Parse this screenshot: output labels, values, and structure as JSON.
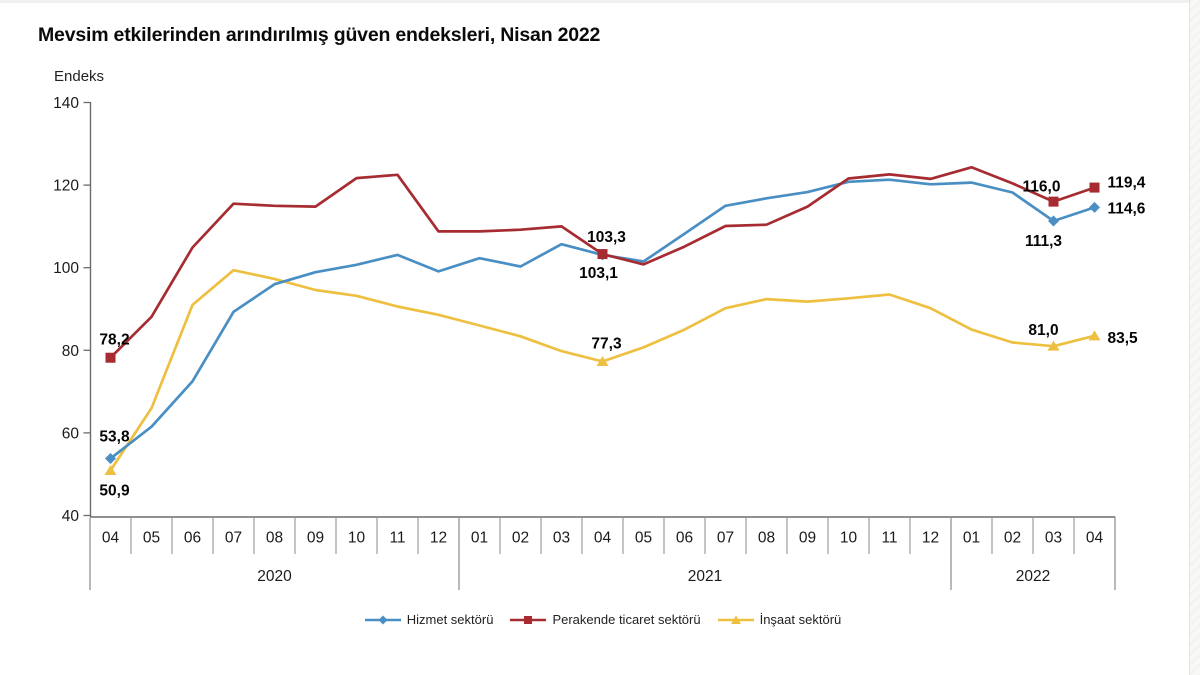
{
  "page": {
    "title": "Mevsim etkilerinden arındırılmış güven endeksleri, Nisan 2022"
  },
  "colors": {
    "hizmet": "#4a8fc4",
    "perakende": "#a62c32",
    "insaat": "#eec041",
    "axis_line": "#6b6b6b",
    "separator": "#8a8a8a",
    "tick_text": "#1b1b1b",
    "data_label_text": "#050505"
  },
  "chart_data": {
    "type": "line",
    "title": "Mevsim etkilerinden arındırılmış güven endeksleri, Nisan 2022",
    "ylabel": "Endeks",
    "ylim": [
      40,
      140
    ],
    "yticks": [
      140,
      120,
      100,
      80,
      60,
      40
    ],
    "grid": false,
    "legend_position": "bottom",
    "x_labels": [
      "04",
      "05",
      "06",
      "07",
      "08",
      "09",
      "10",
      "11",
      "12",
      "01",
      "02",
      "03",
      "04",
      "05",
      "06",
      "07",
      "08",
      "09",
      "10",
      "11",
      "12",
      "01",
      "02",
      "03",
      "04"
    ],
    "year_groups": [
      {
        "label": "2020",
        "count": 9
      },
      {
        "label": "2021",
        "count": 12
      },
      {
        "label": "2022",
        "count": 4
      }
    ],
    "z_order": [
      2,
      0,
      1
    ],
    "series": [
      {
        "key": "hizmet",
        "name": "Hizmet sektörü",
        "marker": "diamond",
        "values": [
          53.8,
          61.5,
          72.5,
          89.3,
          96.0,
          98.9,
          100.7,
          103.1,
          99.1,
          102.3,
          100.3,
          105.7,
          103.1,
          101.5,
          108.2,
          115.0,
          116.8,
          118.3,
          120.8,
          121.3,
          120.2,
          120.6,
          118.2,
          111.3,
          114.6
        ],
        "point_labels": [
          {
            "index": 0,
            "text": "53,8",
            "dx": 4,
            "dy": -17,
            "anchor": "middle"
          },
          {
            "index": 12,
            "text": "103,1",
            "dx": -4,
            "dy": 23,
            "anchor": "middle"
          },
          {
            "index": 23,
            "text": "111,3",
            "dx": -10,
            "dy": 25,
            "anchor": "middle"
          },
          {
            "index": 24,
            "text": "114,6",
            "dx": 13,
            "dy": 6,
            "anchor": "start"
          }
        ]
      },
      {
        "key": "perakende",
        "name": "Perakende ticaret sektörü",
        "marker": "square",
        "values": [
          78.2,
          88.1,
          104.9,
          115.5,
          115.0,
          114.8,
          121.7,
          122.5,
          108.8,
          108.8,
          109.2,
          110.0,
          103.3,
          100.8,
          105.1,
          110.1,
          110.4,
          114.8,
          121.6,
          122.6,
          121.5,
          124.3,
          120.4,
          116.0,
          119.4
        ],
        "point_labels": [
          {
            "index": 0,
            "text": "78,2",
            "dx": 4,
            "dy": -13,
            "anchor": "middle"
          },
          {
            "index": 12,
            "text": "103,3",
            "dx": 4,
            "dy": -12,
            "anchor": "middle"
          },
          {
            "index": 23,
            "text": "116,0",
            "dx": -12,
            "dy": -10,
            "anchor": "middle"
          },
          {
            "index": 24,
            "text": "119,4",
            "dx": 13,
            "dy": 0,
            "anchor": "start"
          }
        ]
      },
      {
        "key": "insaat",
        "name": "İnşaat sektörü",
        "marker": "triangle",
        "values": [
          50.9,
          66.0,
          91.0,
          99.4,
          97.3,
          94.6,
          93.2,
          90.6,
          88.6,
          86.0,
          83.4,
          79.8,
          77.3,
          80.7,
          85.0,
          90.2,
          92.4,
          91.8,
          92.6,
          93.5,
          90.2,
          85.0,
          81.9,
          81.0,
          83.5
        ],
        "point_labels": [
          {
            "index": 0,
            "text": "50,9",
            "dx": 4,
            "dy": 25,
            "anchor": "middle"
          },
          {
            "index": 12,
            "text": "77,3",
            "dx": 4,
            "dy": -13,
            "anchor": "middle"
          },
          {
            "index": 23,
            "text": "81,0",
            "dx": -10,
            "dy": -11,
            "anchor": "middle"
          },
          {
            "index": 24,
            "text": "83,5",
            "dx": 13,
            "dy": 7,
            "anchor": "start"
          }
        ]
      }
    ]
  }
}
